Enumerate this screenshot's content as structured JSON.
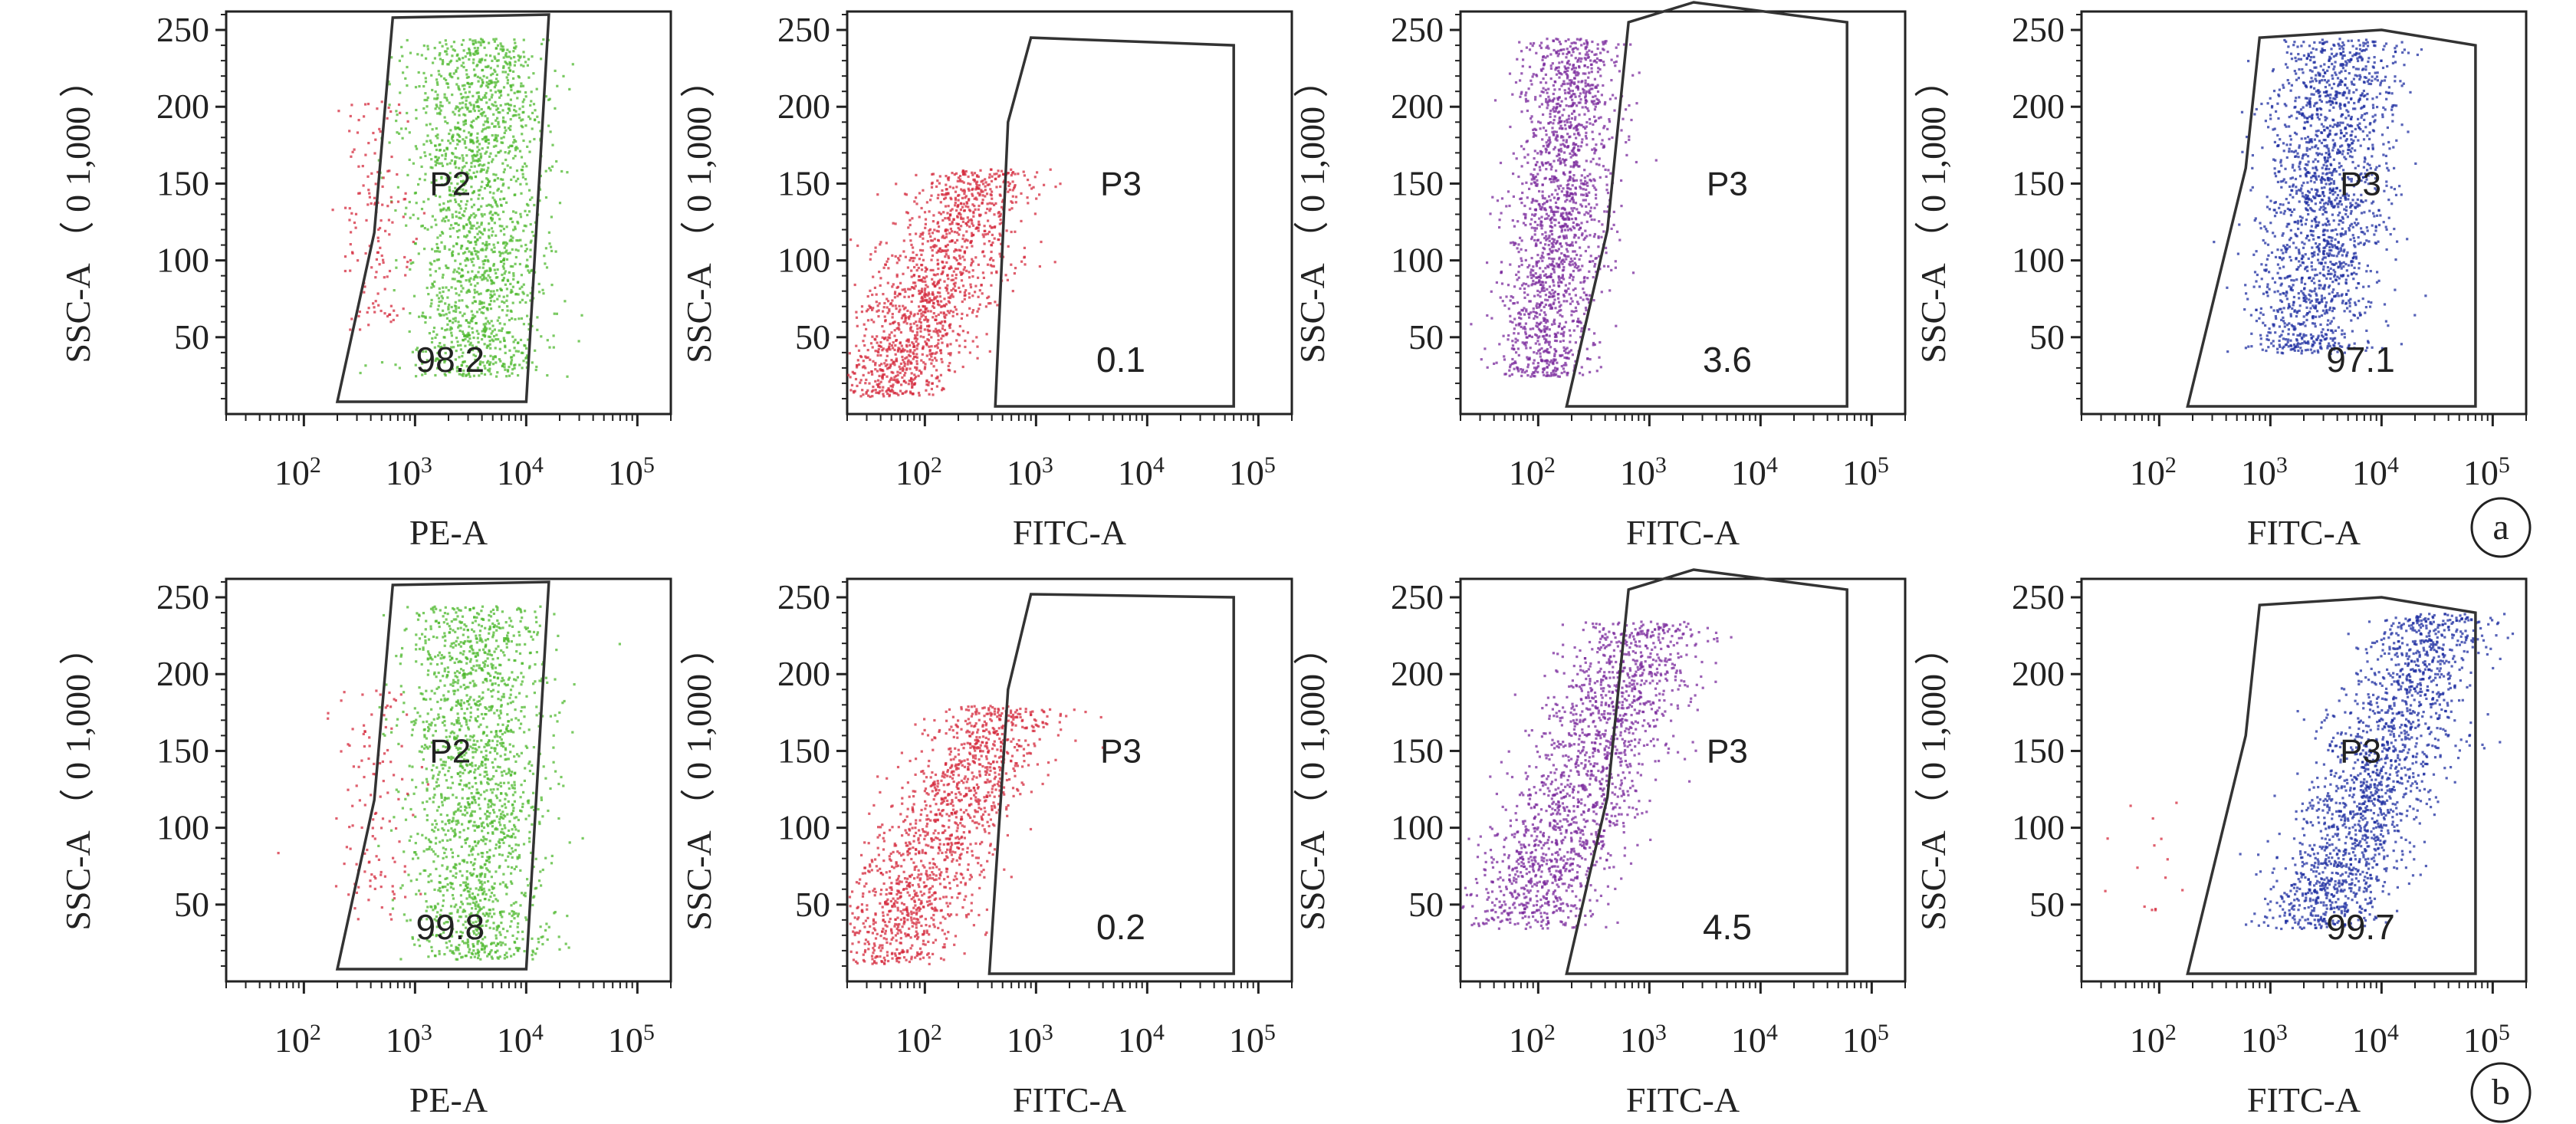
{
  "colors": {
    "green": "#4db82e",
    "red": "#d42a3c",
    "purple": "#7a2a9c",
    "blue": "#1d2ea0",
    "gate_line": "#333333",
    "frame": "#222222"
  },
  "panel_letters": [
    "a",
    "b"
  ],
  "chart_data": [
    {
      "type": "scatter",
      "row": "a",
      "color_key": "green",
      "xlabel": "PE-A",
      "ylabel": "SSC-A （ 0 1,000 ）",
      "x_scale": "log",
      "xlim": [
        20,
        200000
      ],
      "ylim": [
        0,
        262
      ],
      "x_ticks": [
        {
          "label": "10",
          "exp": "2",
          "value": 100
        },
        {
          "label": "10",
          "exp": "3",
          "value": 1000
        },
        {
          "label": "10",
          "exp": "4",
          "value": 10000
        },
        {
          "label": "10",
          "exp": "5",
          "value": 100000
        }
      ],
      "y_ticks": [
        "50",
        "100",
        "150",
        "200",
        "250"
      ],
      "gate": {
        "name": "P2",
        "percent": "98.2",
        "polygon": [
          [
            200,
            8
          ],
          [
            430,
            118
          ],
          [
            630,
            258
          ],
          [
            16000,
            260
          ],
          [
            10000,
            8
          ]
        ]
      },
      "populations": [
        {
          "x_center": 3500,
          "x_spread": 0.3,
          "y_min": 25,
          "y_max": 245,
          "slope": 0.002,
          "count": 1800,
          "color_key": "green"
        },
        {
          "x_center": 420,
          "x_spread": 0.18,
          "y_min": 55,
          "y_max": 205,
          "slope": 0.0,
          "count": 140,
          "color_key": "red"
        }
      ]
    },
    {
      "type": "scatter",
      "row": "a",
      "color_key": "red",
      "xlabel": "FITC-A",
      "ylabel": "SSC-A （ 0 1,000 ）",
      "x_scale": "log",
      "xlim": [
        20,
        200000
      ],
      "ylim": [
        0,
        262
      ],
      "x_ticks": [
        {
          "label": "10",
          "exp": "2",
          "value": 100
        },
        {
          "label": "10",
          "exp": "3",
          "value": 1000
        },
        {
          "label": "10",
          "exp": "4",
          "value": 10000
        },
        {
          "label": "10",
          "exp": "5",
          "value": 100000
        }
      ],
      "y_ticks": [
        "50",
        "100",
        "150",
        "200",
        "250"
      ],
      "gate": {
        "name": "P3",
        "percent": "0.1",
        "polygon": [
          [
            430,
            5
          ],
          [
            560,
            190
          ],
          [
            900,
            245
          ],
          [
            60000,
            240
          ],
          [
            60000,
            5
          ]
        ]
      },
      "populations": [
        {
          "x_center": 120,
          "x_spread": 0.28,
          "y_min": 12,
          "y_max": 160,
          "slope": 0.45,
          "count": 1400,
          "color_key": "red"
        }
      ]
    },
    {
      "type": "scatter",
      "row": "a",
      "color_key": "purple",
      "xlabel": "FITC-A",
      "ylabel": "SSC-A （ 0 1,000 ）",
      "x_scale": "log",
      "xlim": [
        20,
        200000
      ],
      "ylim": [
        0,
        262
      ],
      "x_ticks": [
        {
          "label": "10",
          "exp": "2",
          "value": 100
        },
        {
          "label": "10",
          "exp": "3",
          "value": 1000
        },
        {
          "label": "10",
          "exp": "4",
          "value": 10000
        },
        {
          "label": "10",
          "exp": "5",
          "value": 100000
        }
      ],
      "y_ticks": [
        "50",
        "100",
        "150",
        "200",
        "250"
      ],
      "gate": {
        "name": "P3",
        "percent": "3.6",
        "polygon": [
          [
            180,
            5
          ],
          [
            420,
            120
          ],
          [
            650,
            255
          ],
          [
            2500,
            268
          ],
          [
            60000,
            255
          ],
          [
            60000,
            5
          ]
        ]
      },
      "populations": [
        {
          "x_center": 150,
          "x_spread": 0.22,
          "y_min": 25,
          "y_max": 245,
          "slope": 0.15,
          "count": 1700,
          "color_key": "purple"
        }
      ]
    },
    {
      "type": "scatter",
      "row": "a",
      "color_key": "blue",
      "xlabel": "FITC-A",
      "ylabel": "SSC-A （ 0 1,000 ）",
      "x_scale": "log",
      "xlim": [
        20,
        200000
      ],
      "ylim": [
        0,
        262
      ],
      "x_ticks": [
        {
          "label": "10",
          "exp": "2",
          "value": 100
        },
        {
          "label": "10",
          "exp": "3",
          "value": 1000
        },
        {
          "label": "10",
          "exp": "4",
          "value": 10000
        },
        {
          "label": "10",
          "exp": "5",
          "value": 100000
        }
      ],
      "y_ticks": [
        "50",
        "100",
        "150",
        "200",
        "250"
      ],
      "gate": {
        "name": "P3",
        "percent": "97.1",
        "polygon": [
          [
            180,
            5
          ],
          [
            600,
            160
          ],
          [
            800,
            245
          ],
          [
            10000,
            250
          ],
          [
            70000,
            240
          ],
          [
            70000,
            5
          ]
        ]
      },
      "populations": [
        {
          "x_center": 3000,
          "x_spread": 0.28,
          "y_min": 40,
          "y_max": 245,
          "slope": 0.15,
          "count": 1800,
          "color_key": "blue"
        }
      ]
    },
    {
      "type": "scatter",
      "row": "b",
      "color_key": "green",
      "xlabel": "PE-A",
      "ylabel": "SSC-A （ 0 1,000 ）",
      "x_scale": "log",
      "xlim": [
        20,
        200000
      ],
      "ylim": [
        0,
        262
      ],
      "x_ticks": [
        {
          "label": "10",
          "exp": "2",
          "value": 100
        },
        {
          "label": "10",
          "exp": "3",
          "value": 1000
        },
        {
          "label": "10",
          "exp": "4",
          "value": 10000
        },
        {
          "label": "10",
          "exp": "5",
          "value": 100000
        }
      ],
      "y_ticks": [
        "50",
        "100",
        "150",
        "200",
        "250"
      ],
      "gate": {
        "name": "P2",
        "percent": "99.8",
        "polygon": [
          [
            200,
            8
          ],
          [
            430,
            118
          ],
          [
            630,
            258
          ],
          [
            16000,
            260
          ],
          [
            10000,
            8
          ]
        ]
      },
      "populations": [
        {
          "x_center": 3500,
          "x_spread": 0.3,
          "y_min": 15,
          "y_max": 245,
          "slope": 0.002,
          "count": 1800,
          "color_key": "green"
        },
        {
          "x_center": 420,
          "x_spread": 0.18,
          "y_min": 40,
          "y_max": 190,
          "slope": 0.0,
          "count": 120,
          "color_key": "red"
        }
      ]
    },
    {
      "type": "scatter",
      "row": "b",
      "color_key": "red",
      "xlabel": "FITC-A",
      "ylabel": "SSC-A （ 0 1,000 ）",
      "x_scale": "log",
      "xlim": [
        20,
        200000
      ],
      "ylim": [
        0,
        262
      ],
      "x_ticks": [
        {
          "label": "10",
          "exp": "2",
          "value": 100
        },
        {
          "label": "10",
          "exp": "3",
          "value": 1000
        },
        {
          "label": "10",
          "exp": "4",
          "value": 10000
        },
        {
          "label": "10",
          "exp": "5",
          "value": 100000
        }
      ],
      "y_ticks": [
        "50",
        "100",
        "150",
        "200",
        "250"
      ],
      "gate": {
        "name": "P3",
        "percent": "0.2",
        "polygon": [
          [
            380,
            5
          ],
          [
            560,
            190
          ],
          [
            900,
            252
          ],
          [
            60000,
            250
          ],
          [
            60000,
            5
          ]
        ]
      },
      "populations": [
        {
          "x_center": 140,
          "x_spread": 0.28,
          "y_min": 12,
          "y_max": 180,
          "slope": 0.55,
          "count": 1400,
          "color_key": "red"
        }
      ]
    },
    {
      "type": "scatter",
      "row": "b",
      "color_key": "purple",
      "xlabel": "FITC-A",
      "ylabel": "SSC-A （ 0 1,000 ）",
      "x_scale": "log",
      "xlim": [
        20,
        200000
      ],
      "ylim": [
        0,
        262
      ],
      "x_ticks": [
        {
          "label": "10",
          "exp": "2",
          "value": 100
        },
        {
          "label": "10",
          "exp": "3",
          "value": 1000
        },
        {
          "label": "10",
          "exp": "4",
          "value": 10000
        },
        {
          "label": "10",
          "exp": "5",
          "value": 100000
        }
      ],
      "y_ticks": [
        "50",
        "100",
        "150",
        "200",
        "250"
      ],
      "gate": {
        "name": "P3",
        "percent": "4.5",
        "polygon": [
          [
            180,
            5
          ],
          [
            420,
            120
          ],
          [
            650,
            255
          ],
          [
            2500,
            268
          ],
          [
            60000,
            255
          ],
          [
            60000,
            5
          ]
        ]
      },
      "populations": [
        {
          "x_center": 260,
          "x_spread": 0.3,
          "y_min": 35,
          "y_max": 235,
          "slope": 0.55,
          "count": 1700,
          "color_key": "purple"
        }
      ]
    },
    {
      "type": "scatter",
      "row": "b",
      "color_key": "blue",
      "xlabel": "FITC-A",
      "ylabel": "SSC-A （ 0 1,000 ）",
      "x_scale": "log",
      "xlim": [
        20,
        200000
      ],
      "ylim": [
        0,
        262
      ],
      "x_ticks": [
        {
          "label": "10",
          "exp": "2",
          "value": 100
        },
        {
          "label": "10",
          "exp": "3",
          "value": 1000
        },
        {
          "label": "10",
          "exp": "4",
          "value": 10000
        },
        {
          "label": "10",
          "exp": "5",
          "value": 100000
        }
      ],
      "y_ticks": [
        "50",
        "100",
        "150",
        "200",
        "250"
      ],
      "gate": {
        "name": "P3",
        "percent": "99.7",
        "polygon": [
          [
            180,
            5
          ],
          [
            600,
            160
          ],
          [
            800,
            245
          ],
          [
            10000,
            250
          ],
          [
            70000,
            240
          ],
          [
            70000,
            5
          ]
        ]
      },
      "populations": [
        {
          "x_center": 9000,
          "x_spread": 0.28,
          "y_min": 35,
          "y_max": 240,
          "slope": 0.55,
          "count": 1800,
          "color_key": "blue"
        },
        {
          "x_center": 60,
          "x_spread": 0.25,
          "y_min": 40,
          "y_max": 130,
          "slope": 0.0,
          "count": 15,
          "color_key": "red"
        }
      ]
    }
  ]
}
